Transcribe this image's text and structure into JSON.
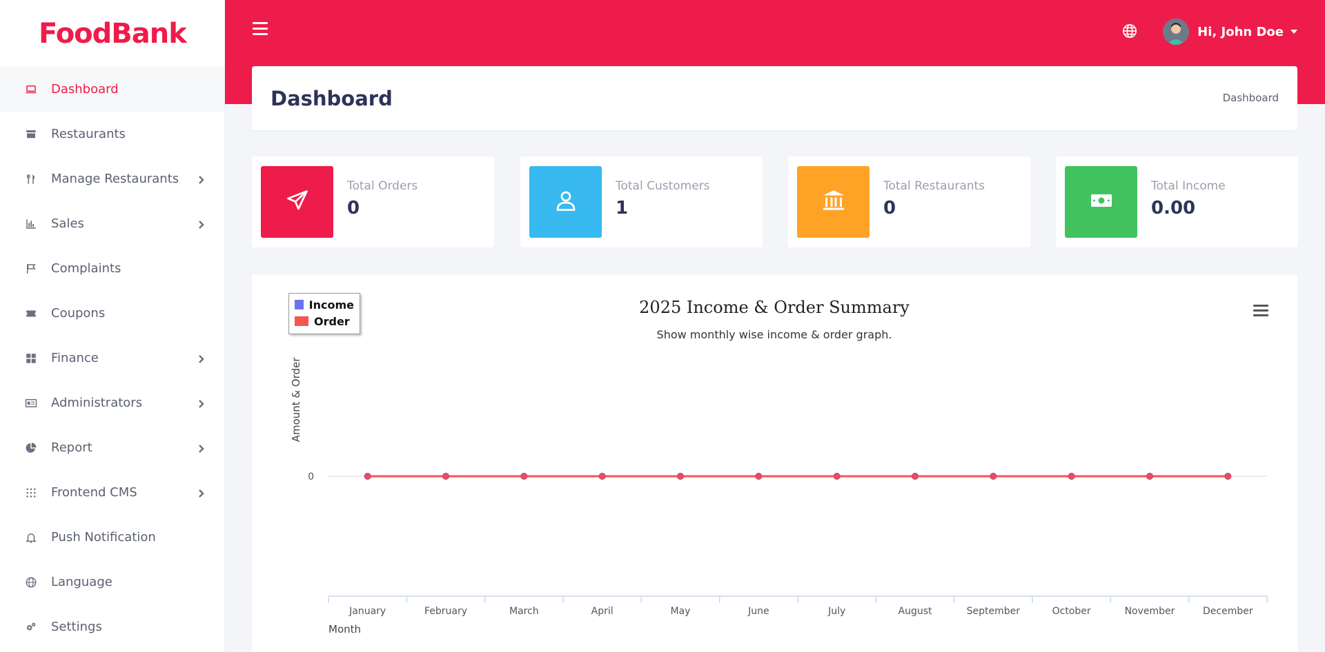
{
  "app": {
    "logo_text": "FoodBank"
  },
  "sidebar": {
    "items": [
      {
        "label": "Dashboard",
        "icon": "laptop-icon",
        "active": true,
        "has_children": false
      },
      {
        "label": "Restaurants",
        "icon": "store-icon",
        "active": false,
        "has_children": false
      },
      {
        "label": "Manage Restaurants",
        "icon": "utensils-icon",
        "active": false,
        "has_children": true
      },
      {
        "label": "Sales",
        "icon": "bar-chart-icon",
        "active": false,
        "has_children": true
      },
      {
        "label": "Complaints",
        "icon": "flag-icon",
        "active": false,
        "has_children": false
      },
      {
        "label": "Coupons",
        "icon": "ticket-icon",
        "active": false,
        "has_children": false
      },
      {
        "label": "Finance",
        "icon": "grid-icon",
        "active": false,
        "has_children": true
      },
      {
        "label": "Administrators",
        "icon": "id-card-icon",
        "active": false,
        "has_children": true
      },
      {
        "label": "Report",
        "icon": "pie-chart-icon",
        "active": false,
        "has_children": true
      },
      {
        "label": "Frontend CMS",
        "icon": "dots-grid-icon",
        "active": false,
        "has_children": true
      },
      {
        "label": "Push Notification",
        "icon": "bell-icon",
        "active": false,
        "has_children": false
      },
      {
        "label": "Language",
        "icon": "globe-icon",
        "active": false,
        "has_children": false
      },
      {
        "label": "Settings",
        "icon": "gears-icon",
        "active": false,
        "has_children": false
      }
    ]
  },
  "header": {
    "user_greeting": "Hi, John Doe",
    "brand_color": "#ee1c4a"
  },
  "page": {
    "title": "Dashboard",
    "breadcrumb": "Dashboard"
  },
  "stats": [
    {
      "label": "Total Orders",
      "value": "0",
      "color": "#ee1c4a",
      "icon": "paper-plane-icon"
    },
    {
      "label": "Total Customers",
      "value": "1",
      "color": "#38b9f0",
      "icon": "user-icon"
    },
    {
      "label": "Total Restaurants",
      "value": "0",
      "color": "#ffa326",
      "icon": "bank-icon"
    },
    {
      "label": "Total Income",
      "value": "0.00",
      "color": "#42c35f",
      "icon": "money-icon"
    }
  ],
  "chart_data": {
    "type": "line",
    "title": "2025 Income & Order Summary",
    "subtitle": "Show monthly wise income & order graph.",
    "xlabel": "Month",
    "ylabel": "Amount & Order",
    "categories": [
      "January",
      "February",
      "March",
      "April",
      "May",
      "June",
      "July",
      "August",
      "September",
      "October",
      "November",
      "December"
    ],
    "y_ticks": [
      "0"
    ],
    "legend_position": "top-left",
    "series": [
      {
        "name": "Income",
        "color": "#6b72f2",
        "values": [
          0,
          0,
          0,
          0,
          0,
          0,
          0,
          0,
          0,
          0,
          0,
          0
        ]
      },
      {
        "name": "Order",
        "color": "#f5564f",
        "values": [
          0,
          0,
          0,
          0,
          0,
          0,
          0,
          0,
          0,
          0,
          0,
          0
        ]
      }
    ]
  }
}
